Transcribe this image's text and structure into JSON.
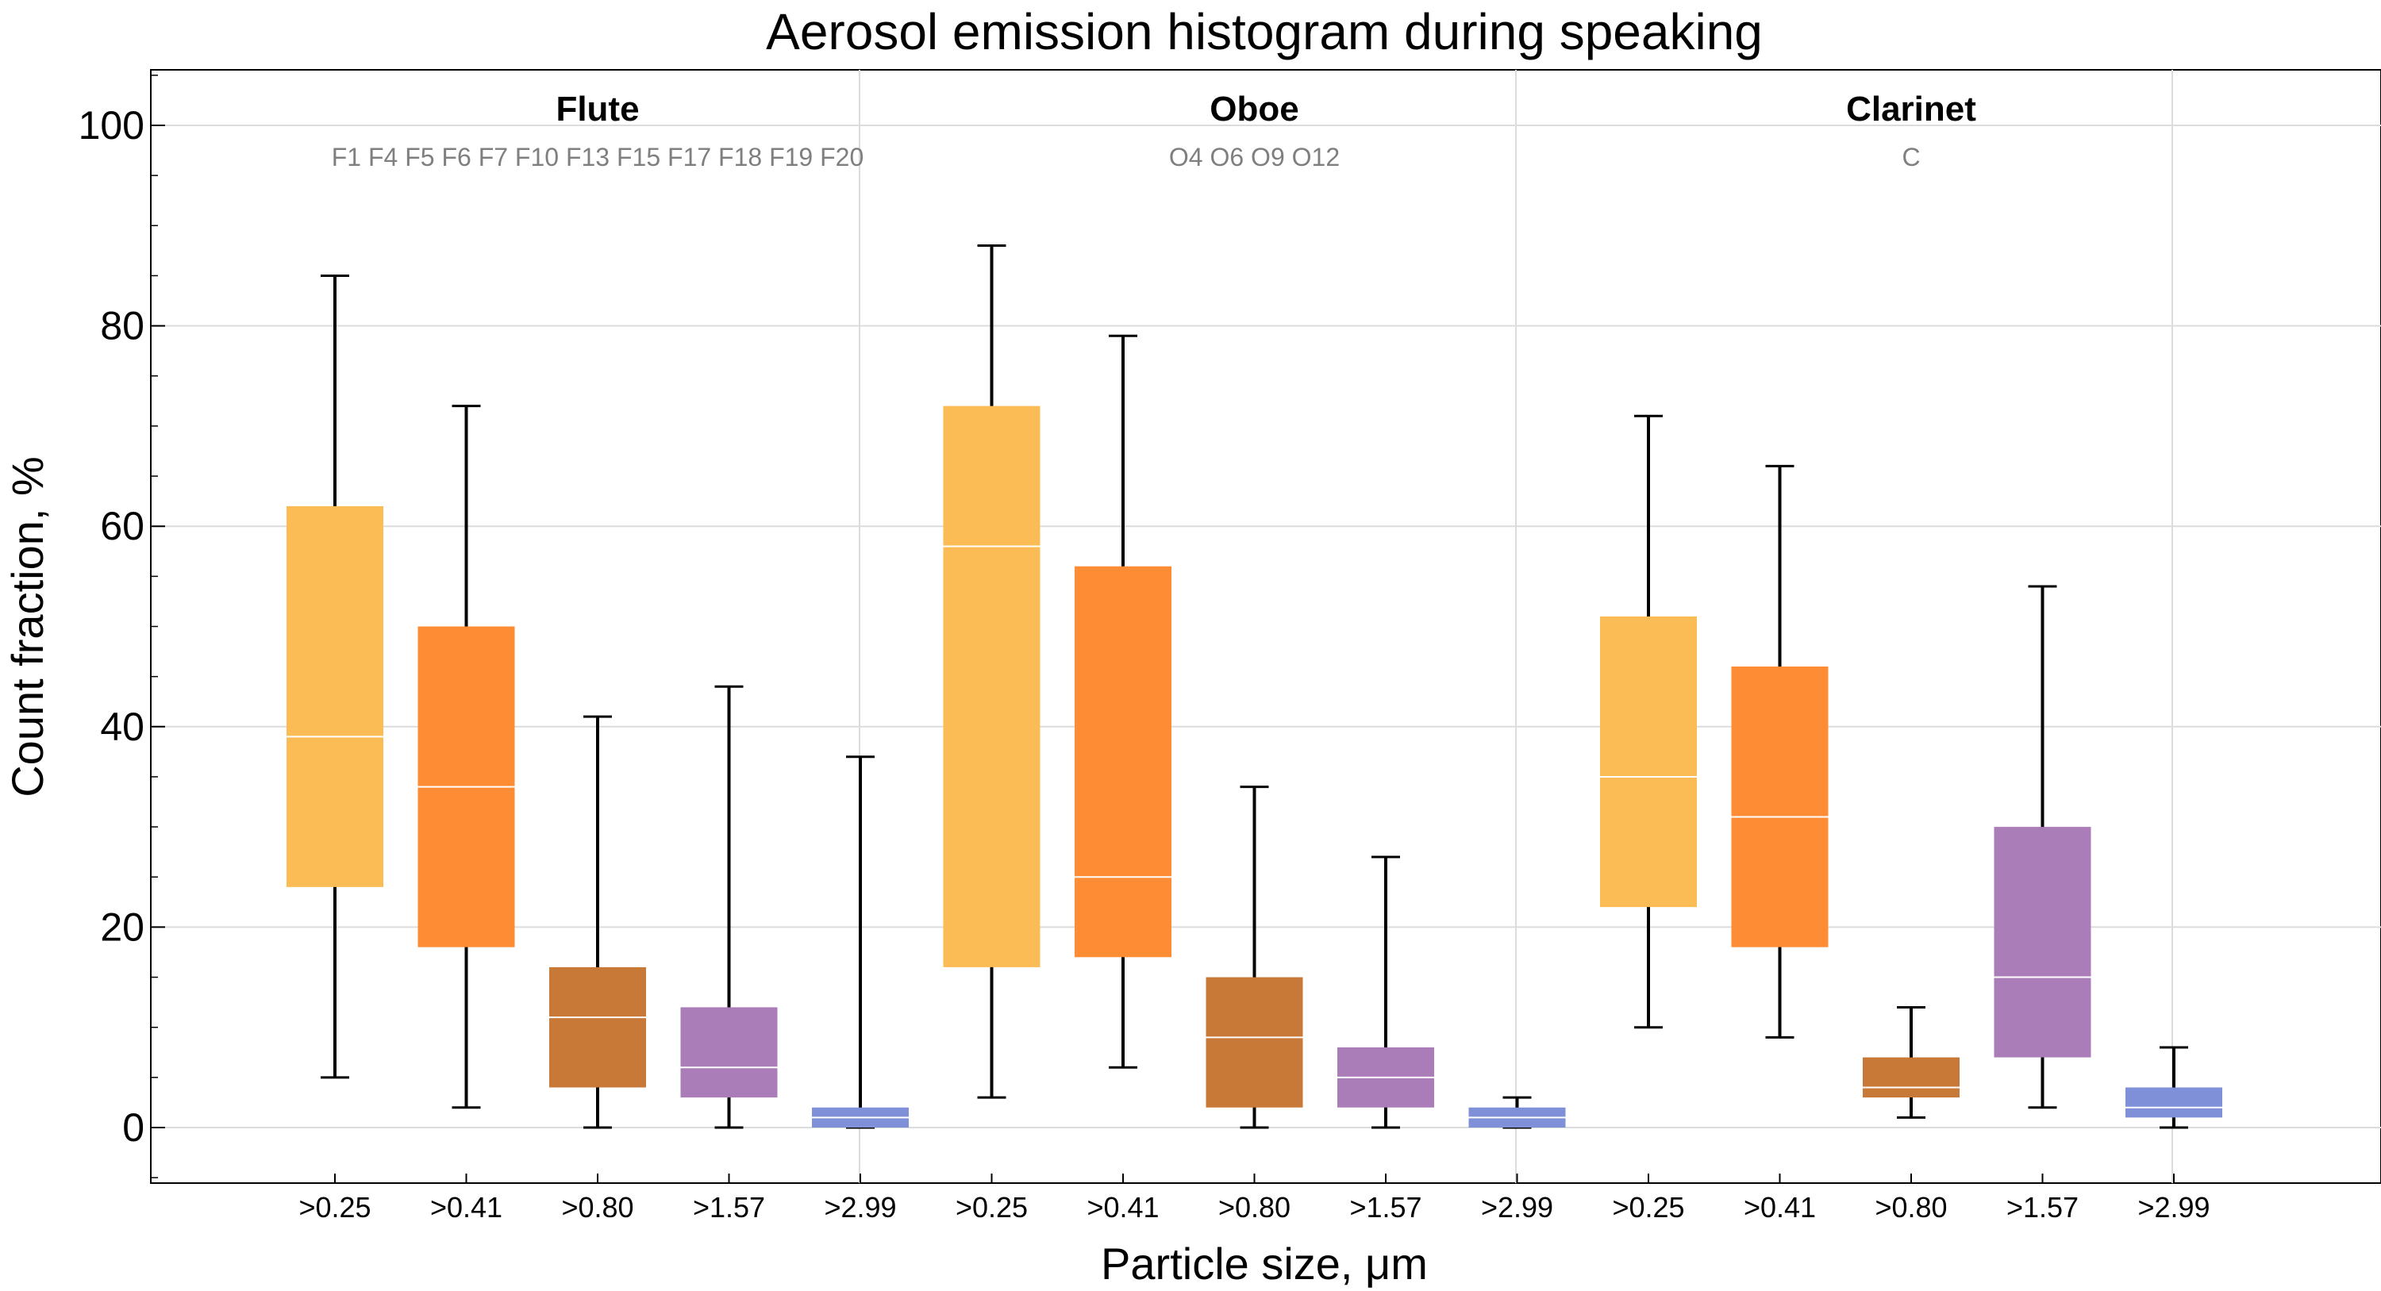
{
  "chart_data": {
    "type": "boxplot",
    "title": "Aerosol emission histogram during speaking",
    "xlabel": "Particle size,  μm",
    "ylabel": "Count  fraction,  %",
    "ylim": [
      -5,
      105
    ],
    "yticks": [
      0,
      20,
      40,
      60,
      80,
      100
    ],
    "grid": true,
    "groups": [
      {
        "name": "Flute",
        "members": "F1 F4 F5 F6 F7 F10 F13 F15 F17 F18 F19 F20",
        "boxes": [
          {
            "label": ">0.25",
            "color": "#fbbc55",
            "min": 5,
            "q1": 24,
            "median": 39,
            "q3": 62,
            "max": 85
          },
          {
            "label": ">0.41",
            "color": "#fd8c34",
            "min": 2,
            "q1": 18,
            "median": 34,
            "q3": 50,
            "max": 72
          },
          {
            "label": ">0.80",
            "color": "#c87837",
            "min": 0,
            "q1": 4,
            "median": 11,
            "q3": 16,
            "max": 41
          },
          {
            "label": ">1.57",
            "color": "#ab7db8",
            "min": 0,
            "q1": 3,
            "median": 6,
            "q3": 12,
            "max": 44
          },
          {
            "label": ">2.99",
            "color": "#7f8fd8",
            "min": 0,
            "q1": 0,
            "median": 1,
            "q3": 2,
            "max": 37
          }
        ]
      },
      {
        "name": "Oboe",
        "members": "O4 O6 O9 O12",
        "boxes": [
          {
            "label": ">0.25",
            "color": "#fbbc55",
            "min": 3,
            "q1": 16,
            "median": 58,
            "q3": 72,
            "max": 88
          },
          {
            "label": ">0.41",
            "color": "#fd8c34",
            "min": 6,
            "q1": 17,
            "median": 25,
            "q3": 56,
            "max": 79
          },
          {
            "label": ">0.80",
            "color": "#c87837",
            "min": 0,
            "q1": 2,
            "median": 9,
            "q3": 15,
            "max": 34
          },
          {
            "label": ">1.57",
            "color": "#ab7db8",
            "min": 0,
            "q1": 2,
            "median": 5,
            "q3": 8,
            "max": 27
          },
          {
            "label": ">2.99",
            "color": "#7f8fd8",
            "min": 0,
            "q1": 0,
            "median": 1,
            "q3": 2,
            "max": 3
          }
        ]
      },
      {
        "name": "Clarinet",
        "members": "C",
        "boxes": [
          {
            "label": ">0.25",
            "color": "#fbbc55",
            "min": 10,
            "q1": 22,
            "median": 35,
            "q3": 51,
            "max": 71
          },
          {
            "label": ">0.41",
            "color": "#fd8c34",
            "min": 9,
            "q1": 18,
            "median": 31,
            "q3": 46,
            "max": 66
          },
          {
            "label": ">0.80",
            "color": "#c87837",
            "min": 1,
            "q1": 3,
            "median": 4,
            "q3": 7,
            "max": 12
          },
          {
            "label": ">1.57",
            "color": "#ab7db8",
            "min": 2,
            "q1": 7,
            "median": 15,
            "q3": 30,
            "max": 54
          },
          {
            "label": ">2.99",
            "color": "#7f8fd8",
            "min": 0,
            "q1": 1,
            "median": 2,
            "q3": 4,
            "max": 8
          }
        ]
      }
    ]
  }
}
